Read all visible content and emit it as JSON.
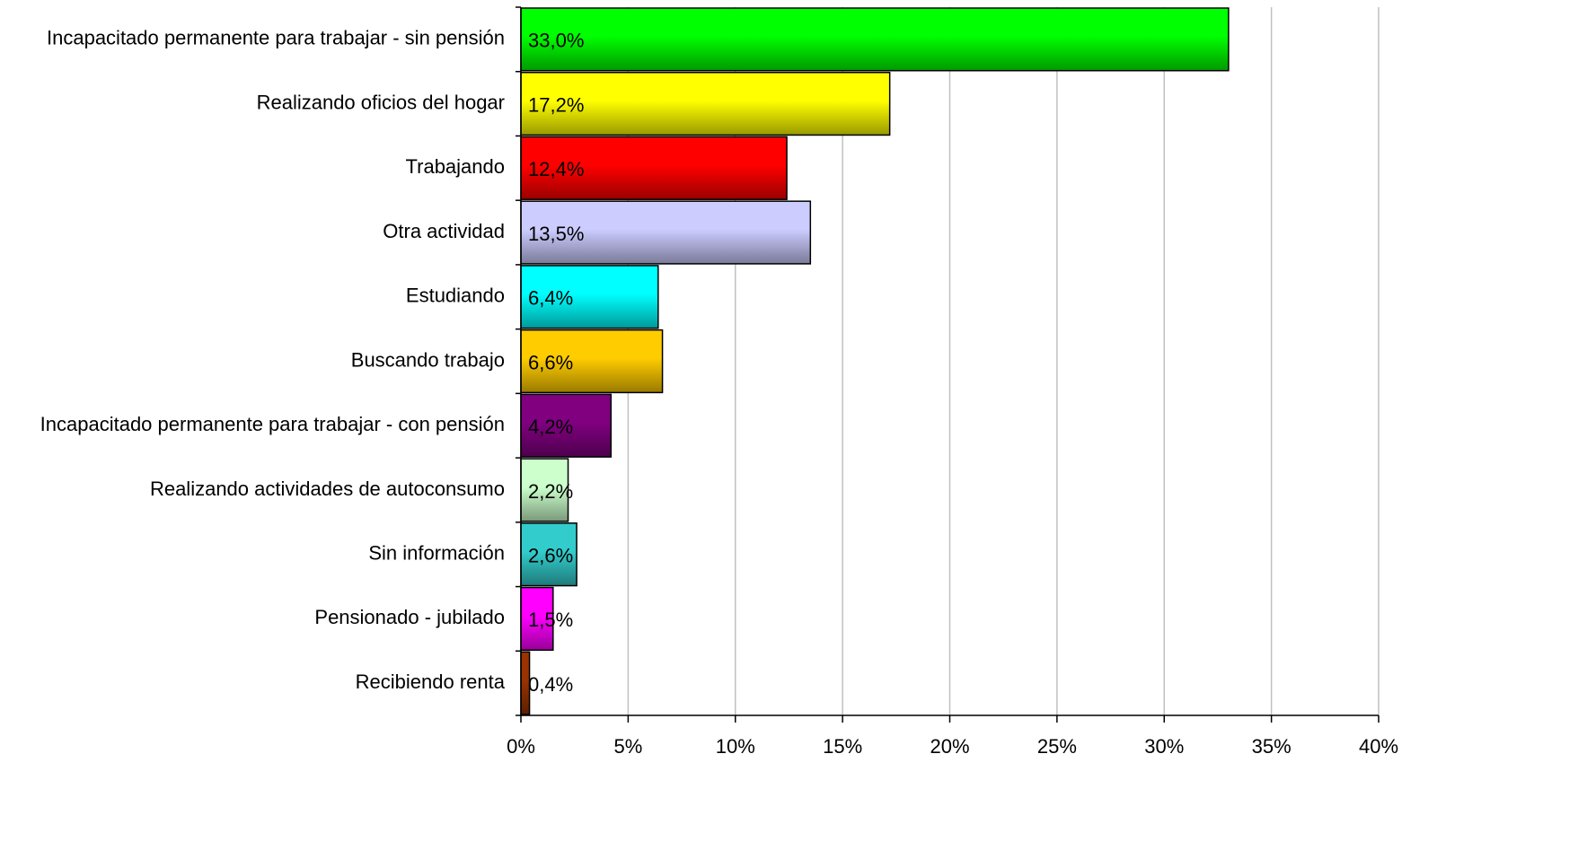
{
  "chart_data": {
    "type": "bar",
    "orientation": "horizontal",
    "categories": [
      "Incapacitado permanente para trabajar - sin pensión",
      "Realizando oficios del hogar",
      "Trabajando",
      "Otra actividad",
      "Estudiando",
      "Buscando trabajo",
      "Incapacitado permanente para trabajar - con pensión",
      "Realizando actividades de autoconsumo",
      "Sin información",
      "Pensionado - jubilado",
      "Recibiendo renta"
    ],
    "values": [
      33.0,
      17.2,
      12.4,
      13.5,
      6.4,
      6.6,
      4.2,
      2.2,
      2.6,
      1.5,
      0.4
    ],
    "value_labels": [
      "33,0%",
      "17,2%",
      "12,4%",
      "13,5%",
      "6,4%",
      "6,6%",
      "4,2%",
      "2,2%",
      "2,6%",
      "1,5%",
      "0,4%"
    ],
    "colors": [
      "#00ff00",
      "#ffff00",
      "#ff0000",
      "#ccccff",
      "#00ffff",
      "#ffcc00",
      "#800080",
      "#ccffcc",
      "#33cccc",
      "#ff00ff",
      "#993300"
    ],
    "xlim": [
      0,
      40
    ],
    "xticks": [
      {
        "value": 0,
        "label": "0%"
      },
      {
        "value": 5,
        "label": "5%"
      },
      {
        "value": 10,
        "label": "10%"
      },
      {
        "value": 15,
        "label": "15%"
      },
      {
        "value": 20,
        "label": "20%"
      },
      {
        "value": 25,
        "label": "25%"
      },
      {
        "value": 30,
        "label": "30%"
      },
      {
        "value": 35,
        "label": "35%"
      },
      {
        "value": 40,
        "label": "40%"
      }
    ],
    "grid": true
  }
}
